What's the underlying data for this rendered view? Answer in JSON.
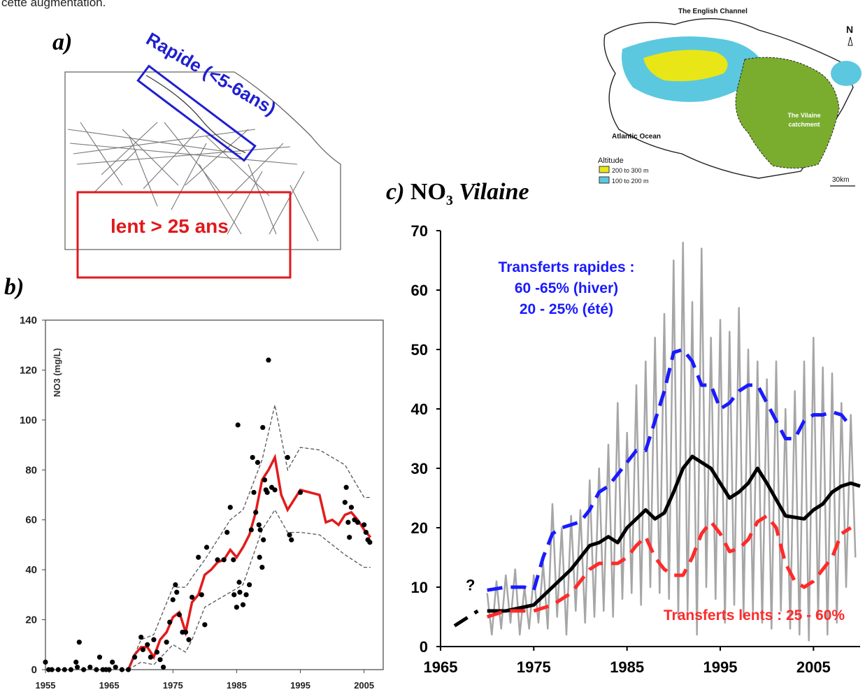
{
  "top_text": "cette augmentation.",
  "panel_a": {
    "letter": "a)",
    "fast_label": "Rapide (<5-6ans)",
    "slow_label": "lent > 25 ans"
  },
  "panel_b": {
    "letter": "b)"
  },
  "panel_c": {
    "letter": "c) ",
    "title_chem": "NO",
    "title_sub": "3",
    "title_name": " Vilaine",
    "fast_annotation": [
      "Transferts rapides :",
      "60 -65% (hiver)",
      "20 - 25% (été)"
    ],
    "slow_annotation": "Transferts lents : 25 - 60%",
    "question_mark": "?"
  },
  "map": {
    "title": "The English Channel",
    "north": "N",
    "ocean": "Atlantic Ocean",
    "catchment": [
      "The Vilaine",
      "catchment"
    ],
    "legend_title": "Altitude",
    "legend_items": [
      {
        "label": "200 to 300 m",
        "color": "#e8e617"
      },
      {
        "label": "100 to 200 m",
        "color": "#5bc8e0"
      }
    ],
    "scale": "30km",
    "catchment_color": "#7aad2e"
  },
  "chart_data": [
    {
      "type": "scatter",
      "ylabel": "NO3 (mg/L)",
      "xlim": [
        1955,
        2008
      ],
      "ylim": [
        0,
        140
      ],
      "xticks": [
        1955,
        1965,
        1975,
        1985,
        1995,
        2005
      ],
      "yticks": [
        0,
        20,
        40,
        60,
        80,
        100,
        120,
        140
      ],
      "points": [
        [
          1955,
          3
        ],
        [
          1955.5,
          0
        ],
        [
          1956,
          0
        ],
        [
          1957,
          0
        ],
        [
          1958,
          0
        ],
        [
          1959,
          0
        ],
        [
          1959.8,
          3
        ],
        [
          1960,
          1
        ],
        [
          1960.3,
          11
        ],
        [
          1961,
          0
        ],
        [
          1962,
          1
        ],
        [
          1963,
          0
        ],
        [
          1963.5,
          5
        ],
        [
          1964,
          0
        ],
        [
          1964.5,
          0
        ],
        [
          1965,
          0
        ],
        [
          1965.5,
          3
        ],
        [
          1966,
          1
        ],
        [
          1967,
          0
        ],
        [
          1968,
          0
        ],
        [
          1969,
          5
        ],
        [
          1970,
          13
        ],
        [
          1970.3,
          8
        ],
        [
          1971,
          10
        ],
        [
          1971.5,
          5
        ],
        [
          1972,
          12
        ],
        [
          1972.5,
          7
        ],
        [
          1973,
          4
        ],
        [
          1973.5,
          1
        ],
        [
          1974,
          11
        ],
        [
          1974.5,
          19
        ],
        [
          1975,
          28
        ],
        [
          1975.4,
          34
        ],
        [
          1975.6,
          31
        ],
        [
          1976,
          22
        ],
        [
          1976.5,
          15
        ],
        [
          1977,
          15
        ],
        [
          1977.5,
          12
        ],
        [
          1978,
          29
        ],
        [
          1979,
          45
        ],
        [
          1979.5,
          30
        ],
        [
          1980,
          18
        ],
        [
          1980.3,
          49
        ],
        [
          1982,
          44
        ],
        [
          1983,
          44
        ],
        [
          1983.5,
          55
        ],
        [
          1984,
          65
        ],
        [
          1984.5,
          44
        ],
        [
          1984.6,
          30
        ],
        [
          1985,
          25
        ],
        [
          1985.2,
          98
        ],
        [
          1985.4,
          35
        ],
        [
          1985.5,
          31
        ],
        [
          1986,
          26
        ],
        [
          1986.5,
          30
        ],
        [
          1987,
          34
        ],
        [
          1987.3,
          56
        ],
        [
          1987.5,
          85
        ],
        [
          1987.7,
          71
        ],
        [
          1988,
          63
        ],
        [
          1988.3,
          83
        ],
        [
          1988.5,
          58
        ],
        [
          1988.6,
          45
        ],
        [
          1988.7,
          56
        ],
        [
          1989,
          41
        ],
        [
          1989.1,
          97
        ],
        [
          1989.2,
          52
        ],
        [
          1989.4,
          76
        ],
        [
          1989.6,
          72
        ],
        [
          1989.8,
          71
        ],
        [
          1990,
          124
        ],
        [
          1990.5,
          73
        ],
        [
          1991,
          72
        ],
        [
          1993,
          85
        ],
        [
          1993.3,
          54
        ],
        [
          1993.6,
          52
        ],
        [
          1995,
          71
        ],
        [
          2002,
          67
        ],
        [
          2002.2,
          73
        ],
        [
          2002.5,
          59
        ],
        [
          2002.7,
          53
        ],
        [
          2003,
          65
        ],
        [
          2003.5,
          60
        ],
        [
          2004,
          59
        ],
        [
          2005,
          58
        ],
        [
          2005.3,
          55
        ],
        [
          2005.6,
          52
        ],
        [
          2005.9,
          51
        ]
      ],
      "series": [
        {
          "color": "#e31a1c",
          "x": [
            1968,
            1969,
            1970,
            1971,
            1972,
            1973,
            1974,
            1975,
            1976,
            1977,
            1978,
            1979,
            1980,
            1981,
            1982,
            1983,
            1984,
            1985,
            1986,
            1987,
            1988,
            1989,
            1990,
            1991,
            1992,
            1993,
            1995,
            1998,
            1999,
            2000,
            2001,
            2002,
            2003,
            2004,
            2005,
            2006
          ],
          "y": [
            0,
            6,
            9,
            9,
            5,
            12,
            15,
            21,
            23,
            15,
            27,
            30,
            38,
            40,
            43,
            44,
            48,
            45,
            49,
            54,
            63,
            76,
            80,
            85,
            70,
            64,
            72,
            70,
            59,
            60,
            58,
            62,
            63,
            60,
            56,
            53
          ]
        },
        {
          "color": "#555555",
          "dash": true,
          "x": [
            1968,
            1970,
            1972,
            1975,
            1977,
            1978,
            1980,
            1984,
            1986,
            1989,
            1991,
            1993,
            1995,
            1998,
            2002,
            2005,
            2006
          ],
          "y": [
            0,
            12,
            14,
            33,
            33,
            37,
            44,
            60,
            64,
            84,
            106,
            80,
            89,
            88,
            82,
            69,
            69
          ]
        },
        {
          "color": "#555555",
          "dash": true,
          "x": [
            1968,
            1970,
            1972,
            1975,
            1977,
            1978,
            1980,
            1984,
            1986,
            1989,
            1991,
            1993,
            1995,
            1998,
            2002,
            2005,
            2006
          ],
          "y": [
            0,
            3,
            2,
            10,
            7,
            12,
            25,
            31,
            34,
            56,
            64,
            55,
            55,
            54,
            46,
            41,
            41
          ]
        }
      ]
    },
    {
      "type": "line",
      "xlim": [
        1965,
        2010
      ],
      "ylim": [
        0,
        70
      ],
      "xticks": [
        1965,
        1975,
        1985,
        1995,
        2005
      ],
      "yticks": [
        0,
        10,
        20,
        30,
        40,
        50,
        60,
        70
      ],
      "series": [
        {
          "color": "#a6a6a6",
          "x": [
            1970,
            1970.5,
            1971,
            1971.5,
            1972,
            1972.5,
            1973,
            1973.5,
            1974,
            1974.5,
            1975,
            1975.5,
            1976,
            1976.5,
            1977,
            1977.5,
            1978,
            1978.5,
            1979,
            1979.5,
            1980,
            1980.5,
            1981,
            1981.5,
            1982,
            1982.5,
            1983,
            1983.5,
            1984,
            1984.5,
            1985,
            1985.5,
            1986,
            1986.5,
            1987,
            1987.5,
            1988,
            1988.5,
            1989,
            1989.5,
            1990,
            1990.5,
            1991,
            1991.5,
            1992,
            1992.5,
            1993,
            1993.5,
            1994,
            1994.5,
            1995,
            1995.5,
            1996,
            1996.5,
            1997,
            1997.5,
            1998,
            1998.5,
            1999,
            1999.5,
            2000,
            2000.5,
            2001,
            2001.5,
            2002,
            2002.5,
            2003,
            2003.5,
            2004,
            2004.5,
            2005,
            2005.5,
            2006,
            2006.5,
            2007,
            2007.5,
            2008,
            2008.5,
            2009,
            2009.5
          ],
          "y": [
            9,
            2,
            11,
            3,
            12,
            4,
            13,
            2,
            10,
            3,
            12,
            4,
            14,
            3,
            24,
            5,
            20,
            2,
            22,
            6,
            23,
            4,
            28,
            5,
            30,
            6,
            34,
            5,
            41,
            8,
            36,
            9,
            44,
            7,
            48,
            10,
            52,
            9,
            56,
            8,
            65,
            5,
            68,
            6,
            58,
            2,
            67,
            10,
            52,
            8,
            55,
            4,
            53,
            7,
            57,
            5,
            50,
            6,
            48,
            4,
            45,
            3,
            48,
            6,
            40,
            3,
            43,
            2,
            48,
            1,
            52,
            5,
            47,
            2,
            46,
            4,
            41,
            10,
            39,
            15
          ]
        },
        {
          "color": "#000000",
          "x": [
            1970,
            1972,
            1975,
            1977,
            1979,
            1981,
            1982,
            1983,
            1984,
            1985,
            1986,
            1987,
            1988,
            1989,
            1990,
            1991,
            1992,
            1993,
            1994,
            1995,
            1996,
            1997,
            1998,
            1999,
            2000,
            2002,
            2004,
            2005,
            2006,
            2007,
            2008,
            2009,
            2010
          ],
          "y": [
            6,
            6,
            7,
            10,
            13,
            17,
            17.5,
            18.5,
            17.5,
            20,
            21.5,
            23,
            21.5,
            22.5,
            26,
            30,
            32,
            31,
            30,
            27.5,
            25,
            26,
            27.5,
            30,
            27.5,
            22,
            21.5,
            23,
            24,
            26,
            27,
            27.5,
            27
          ]
        },
        {
          "color": "#1a1aff",
          "dash": true,
          "x": [
            1970,
            1972,
            1974,
            1975,
            1976,
            1977,
            1978,
            1979,
            1980,
            1981,
            1982,
            1983,
            1984,
            1985,
            1986,
            1987,
            1988,
            1989,
            1990,
            1991,
            1992,
            1993,
            1994,
            1995,
            1996,
            1997,
            1998,
            1999,
            2000,
            2001,
            2002,
            2003,
            2004,
            2005,
            2006,
            2007,
            2008,
            2009
          ],
          "y": [
            9.5,
            10,
            10,
            9.5,
            15,
            19,
            20,
            20.5,
            21,
            23,
            26,
            27,
            29,
            31,
            33,
            33,
            38,
            43,
            49.5,
            50,
            48,
            44,
            44,
            40,
            41,
            43,
            44,
            44,
            41,
            38,
            35,
            35,
            38,
            39,
            39,
            39.5,
            39,
            37
          ]
        },
        {
          "color": "#ff2a2a",
          "dash": true,
          "x": [
            1970,
            1972,
            1975,
            1976,
            1977,
            1978,
            1979,
            1980,
            1981,
            1982,
            1983,
            1984,
            1985,
            1986,
            1987,
            1988,
            1989,
            1990,
            1991,
            1992,
            1993,
            1994,
            1995,
            1996,
            1997,
            1998,
            1999,
            2000,
            2001,
            2002,
            2003,
            2004,
            2005,
            2006,
            2007,
            2008,
            2009
          ],
          "y": [
            5,
            6,
            6,
            6.5,
            7,
            8,
            9,
            11,
            13,
            14,
            14,
            14,
            15,
            17,
            18.5,
            15,
            13,
            12,
            12,
            15,
            19,
            21,
            19,
            16,
            16.5,
            18,
            21,
            22,
            20,
            14,
            11,
            10,
            11,
            13,
            15,
            19,
            20
          ]
        },
        {
          "color": "#000000",
          "dash": true,
          "x": [
            1966.5,
            1969
          ],
          "y": [
            3.5,
            6
          ]
        }
      ]
    }
  ]
}
